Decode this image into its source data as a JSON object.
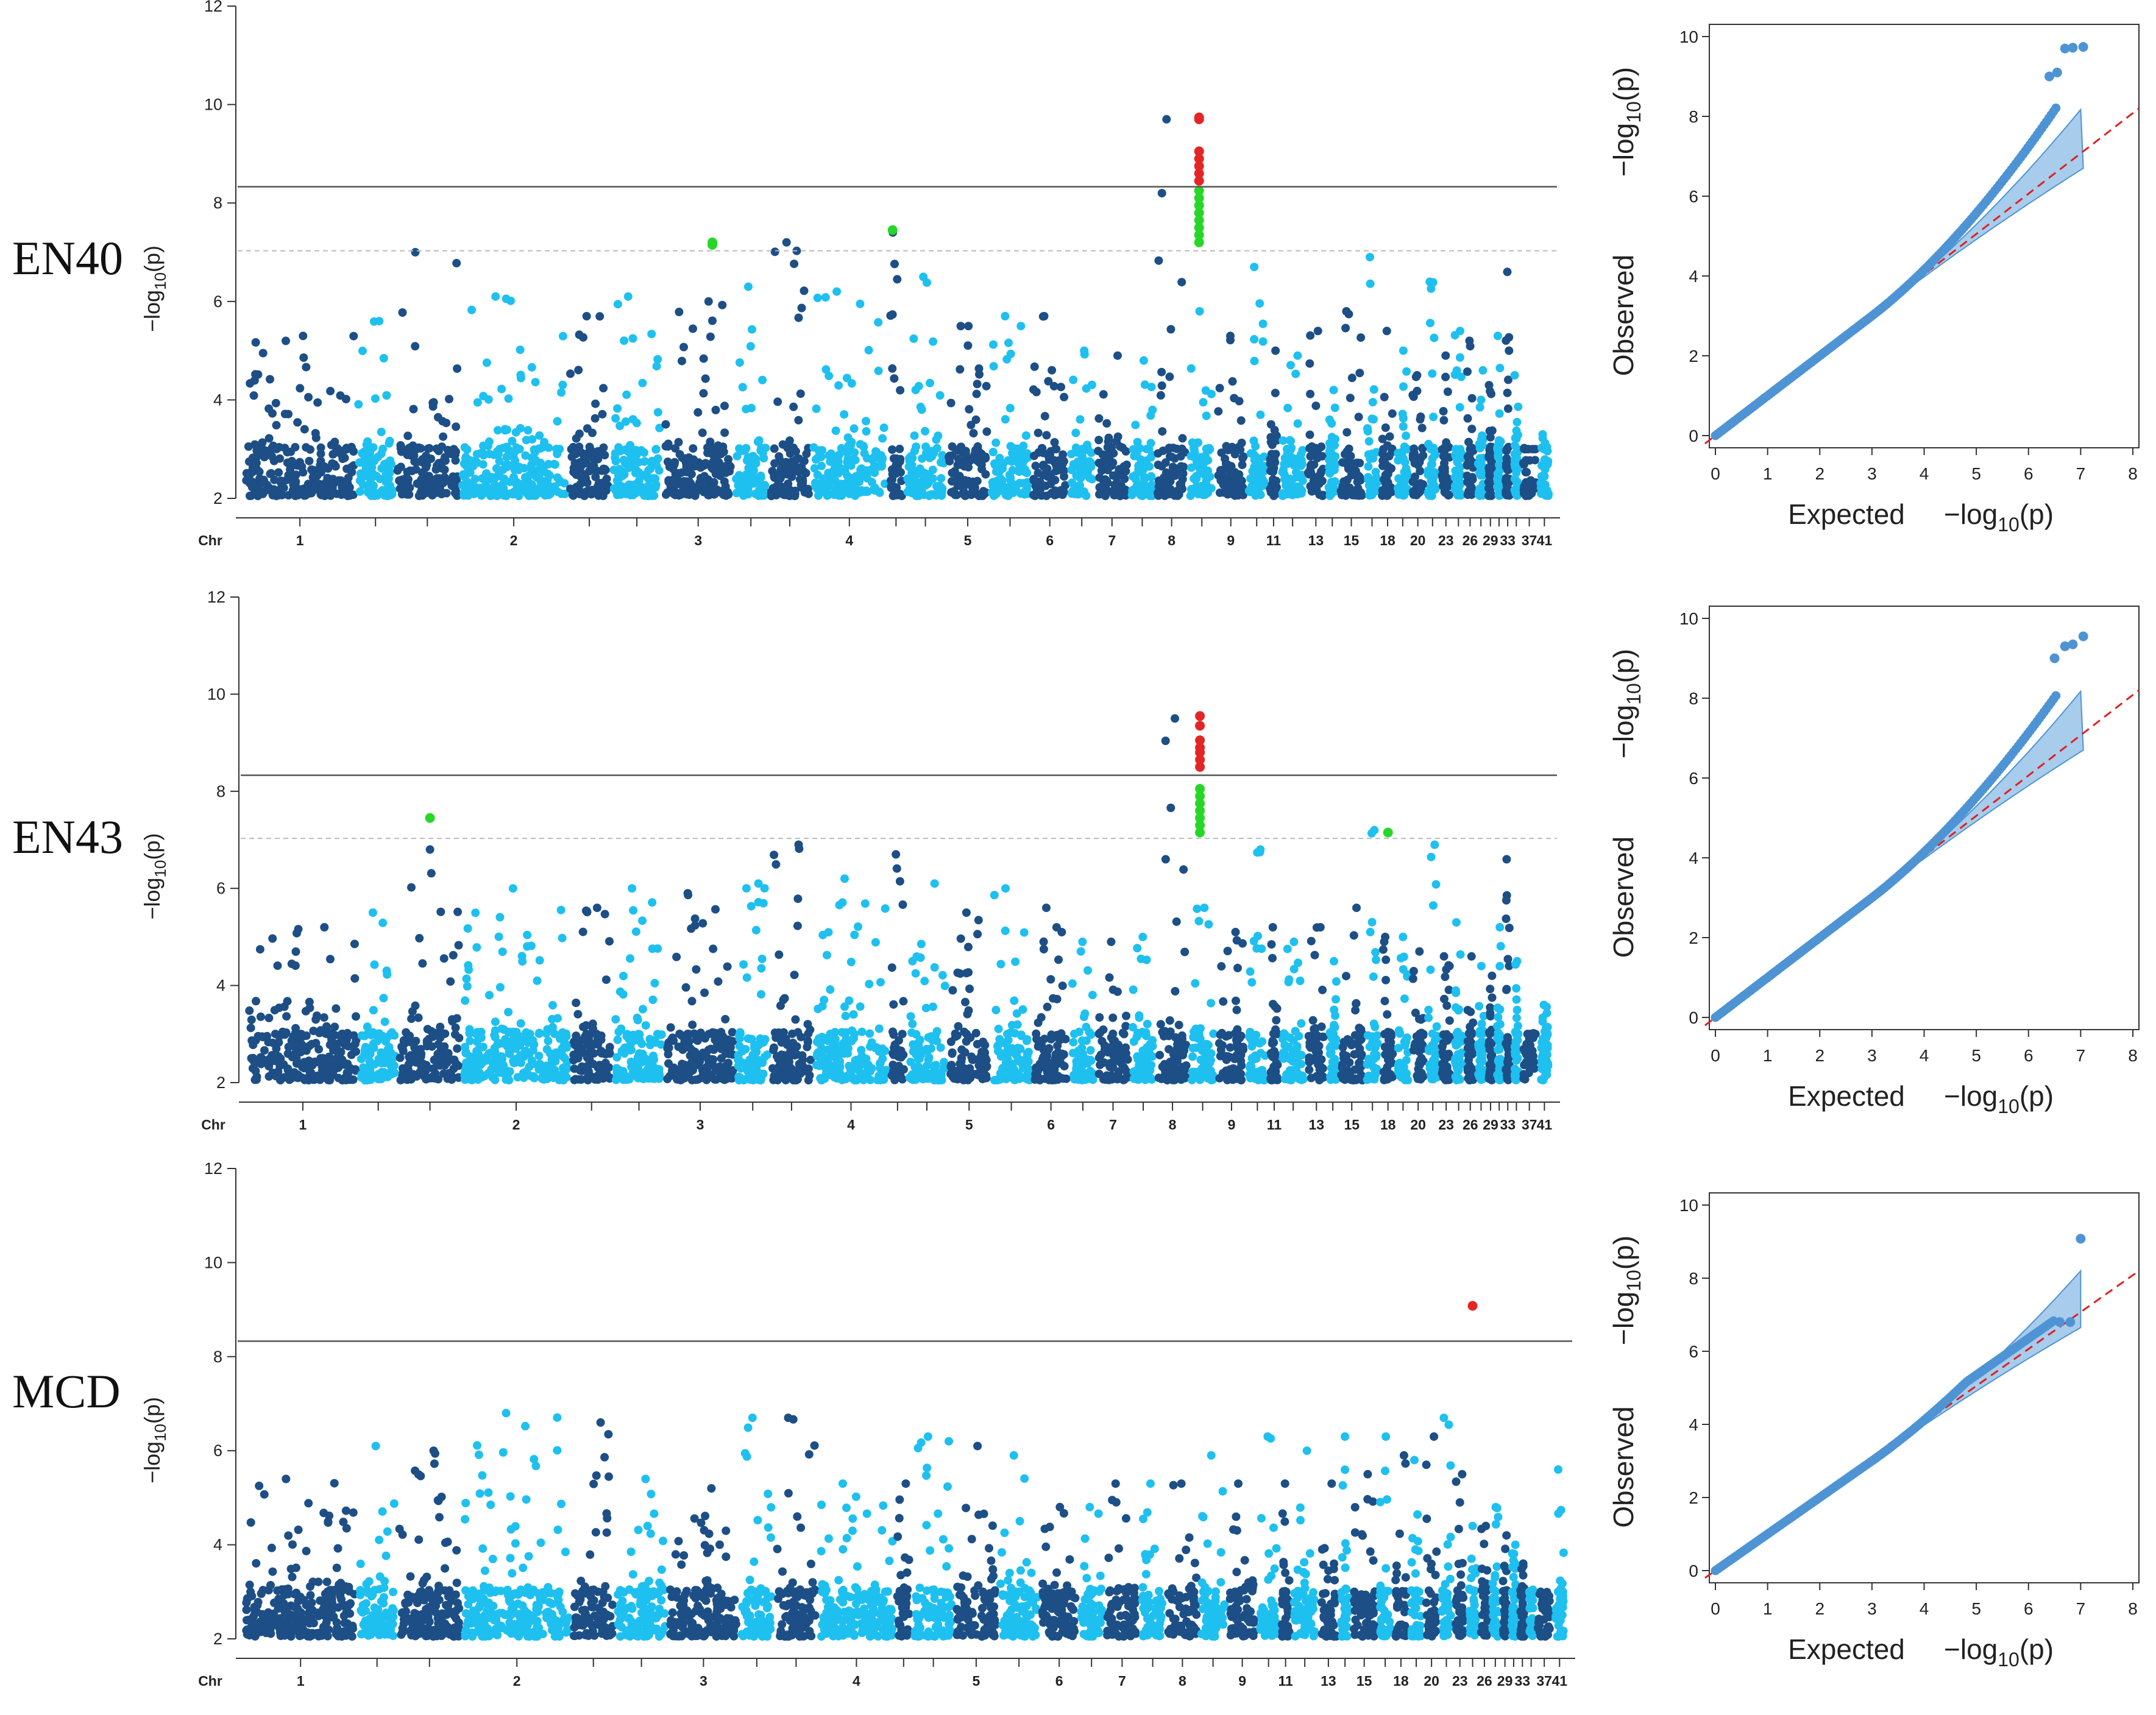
{
  "colors": {
    "dark": "#1d4f86",
    "light": "#1ec0f0",
    "red": "#e52525",
    "green": "#27d727",
    "qq": "#4e94d4",
    "band": "#a8ccec"
  },
  "chr_axis": {
    "label": "Chr",
    "labels": [
      "1",
      "2",
      "3",
      "4",
      "5",
      "6",
      "7",
      "8",
      "9",
      "11",
      "13",
      "15",
      "18",
      "20",
      "23",
      "26",
      "29",
      "33",
      "37",
      "41"
    ]
  },
  "chart_data": [
    {
      "type": "scatter",
      "panel": "manhattan",
      "row_label": "EN40",
      "ylabel_main": "−log",
      "ylabel_sub": "10",
      "ylabel_tail": "(p)",
      "ylim": [
        2,
        12
      ],
      "yticks": [
        "2",
        "4",
        "6",
        "8",
        "10",
        "12"
      ],
      "thresholds": [
        8.33,
        7.03
      ],
      "chr_peaks": [
        5.3,
        5.6,
        7.0,
        6.1,
        5.7,
        6.1,
        6.0,
        6.3,
        7.2,
        6.2,
        7.4,
        6.5,
        5.5,
        5.7,
        5.7,
        5.0,
        4.9,
        4.8,
        9.7,
        5.8,
        5.3,
        6.7,
        5.0,
        4.9,
        5.4,
        4.2,
        5.8,
        6.9,
        5.4,
        5.0,
        4.5,
        6.4,
        4.9,
        5.4,
        5.2,
        4.6,
        4.3,
        5.3,
        6.6,
        4.5,
        3.0,
        3.3
      ],
      "significant": [
        {
          "chr": "10",
          "values": [
            9.74,
            9.7,
            9.05,
            8.9,
            8.75,
            8.6,
            8.45
          ]
        },
        {
          "chr": "10 suggestive",
          "values": [
            8.25,
            8.1,
            7.95,
            7.8,
            7.65,
            7.5,
            7.35,
            7.2
          ]
        },
        {
          "chr": "3",
          "values": [
            7.2,
            7.15
          ]
        },
        {
          "chr": "4",
          "values": [
            7.45
          ]
        }
      ],
      "qq": {
        "xlabel": "Expected",
        "ylabel": "Observed",
        "axis_sub": "−log",
        "axis_sub_10": "10",
        "axis_tail": "(p)",
        "xlim": [
          0,
          8
        ],
        "ylim": [
          0,
          10
        ],
        "xticks": [
          "0",
          "1",
          "2",
          "3",
          "4",
          "5",
          "6",
          "7",
          "8"
        ],
        "yticks": [
          "0",
          "2",
          "4",
          "6",
          "8",
          "10"
        ],
        "max_expected": 7.05,
        "max_observed": 9.74,
        "top_points": [
          [
            6.4,
            9.0
          ],
          [
            6.55,
            9.1
          ],
          [
            6.7,
            9.7
          ],
          [
            6.85,
            9.72
          ],
          [
            7.05,
            9.74
          ]
        ]
      }
    },
    {
      "type": "scatter",
      "panel": "manhattan",
      "row_label": "EN43",
      "ylabel_main": "−log",
      "ylabel_sub": "10",
      "ylabel_tail": "(p)",
      "ylim": [
        2,
        12
      ],
      "yticks": [
        "2",
        "4",
        "6",
        "8",
        "10",
        "12"
      ],
      "thresholds": [
        8.33,
        7.03
      ],
      "chr_peaks": [
        5.2,
        5.5,
        6.8,
        6.0,
        5.6,
        6.0,
        5.9,
        6.1,
        6.9,
        6.2,
        6.7,
        6.1,
        5.5,
        6.0,
        5.6,
        4.9,
        4.9,
        5.0,
        9.5,
        5.6,
        5.1,
        6.8,
        5.2,
        4.9,
        5.2,
        4.5,
        5.6,
        7.2,
        5.0,
        5.0,
        4.7,
        6.9,
        4.6,
        5.3,
        4.6,
        4.4,
        4.2,
        5.2,
        6.6,
        4.5,
        3.0,
        3.6
      ],
      "significant": [
        {
          "chr": "10",
          "values": [
            9.55,
            9.35,
            9.05,
            8.9,
            8.8,
            8.65,
            8.5
          ]
        },
        {
          "chr": "10 suggestive",
          "values": [
            8.05,
            7.9,
            7.75,
            7.6,
            7.45,
            7.3,
            7.15
          ]
        },
        {
          "chr": "1",
          "values": [
            7.45
          ]
        },
        {
          "chr": "19",
          "values": [
            7.15
          ]
        }
      ],
      "qq": {
        "xlabel": "Expected",
        "ylabel": "Observed",
        "axis_sub": "−log",
        "axis_sub_10": "10",
        "axis_tail": "(p)",
        "xlim": [
          0,
          8
        ],
        "ylim": [
          0,
          10
        ],
        "xticks": [
          "0",
          "1",
          "2",
          "3",
          "4",
          "5",
          "6",
          "7",
          "8"
        ],
        "yticks": [
          "0",
          "2",
          "4",
          "6",
          "8",
          "10"
        ],
        "max_expected": 7.05,
        "max_observed": 9.55,
        "top_points": [
          [
            6.5,
            9.0
          ],
          [
            6.7,
            9.3
          ],
          [
            6.85,
            9.35
          ],
          [
            7.05,
            9.55
          ]
        ]
      }
    },
    {
      "type": "scatter",
      "panel": "manhattan",
      "row_label": "MCD",
      "ylabel_main": "−log",
      "ylabel_sub": "10",
      "ylabel_tail": "(p)",
      "ylim": [
        2,
        12
      ],
      "yticks": [
        "2",
        "4",
        "6",
        "8",
        "10",
        "12"
      ],
      "thresholds": [
        8.33
      ],
      "chr_peaks": [
        5.4,
        6.1,
        6.0,
        6.8,
        6.6,
        5.4,
        5.2,
        6.7,
        6.7,
        5.3,
        5.3,
        6.3,
        6.1,
        5.9,
        4.8,
        4.8,
        5.3,
        5.3,
        5.3,
        5.9,
        5.3,
        6.3,
        5.3,
        6.0,
        5.3,
        6.3,
        5.5,
        6.3,
        5.9,
        5.8,
        6.3,
        6.7,
        5.5,
        4.4,
        4.4,
        4.8,
        4.2,
        4.0,
        3.6,
        3.0,
        2.6,
        5.6
      ],
      "significant": [
        {
          "chr": "28",
          "values": [
            9.08
          ]
        }
      ],
      "qq": {
        "xlabel": "Expected",
        "ylabel": "Observed",
        "axis_sub": "−log",
        "axis_sub_10": "10",
        "axis_tail": "(p)",
        "xlim": [
          0,
          8
        ],
        "ylim": [
          0,
          10
        ],
        "xticks": [
          "0",
          "1",
          "2",
          "3",
          "4",
          "5",
          "6",
          "7",
          "8"
        ],
        "yticks": [
          "0",
          "2",
          "4",
          "6",
          "8",
          "10"
        ],
        "max_expected": 7.0,
        "max_observed": 9.08,
        "top_points": [
          [
            6.6,
            6.8
          ],
          [
            6.8,
            6.8
          ],
          [
            7.0,
            9.08
          ]
        ]
      }
    }
  ]
}
